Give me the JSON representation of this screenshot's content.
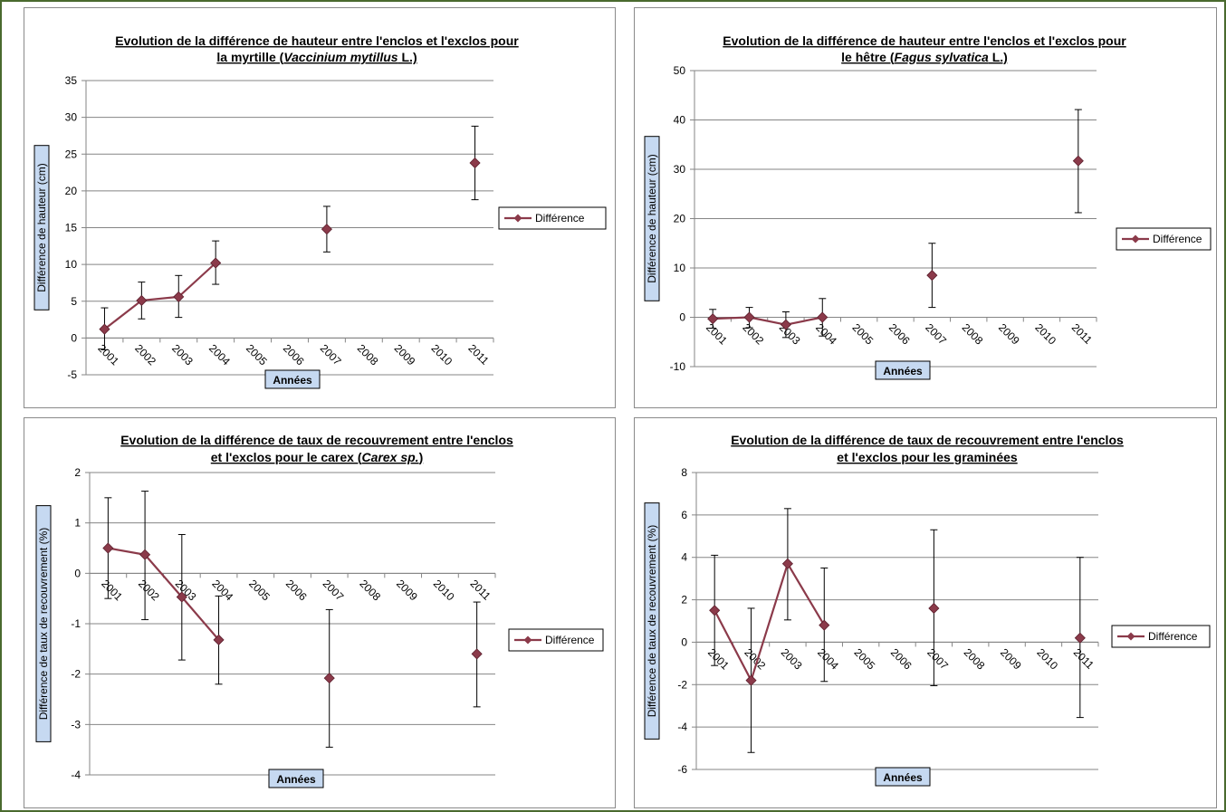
{
  "chart_data": [
    {
      "type": "line",
      "title_line1": "Evolution de la différence de hauteur entre l'enclos et l'exclos pour",
      "title_line2_pre": "la myrtille (",
      "title_line2_italic": "Vaccinium mytillus",
      "title_line2_post": " L.)",
      "xlabel": "Années",
      "ylabel": "Différence de hauteur (cm)",
      "categories": [
        "2001",
        "2002",
        "2003",
        "2004",
        "2005",
        "2006",
        "2007",
        "2008",
        "2009",
        "2010",
        "2011"
      ],
      "ylim": [
        -5,
        35
      ],
      "yticks": [
        -5,
        0,
        5,
        10,
        15,
        20,
        25,
        30,
        35
      ],
      "series": [
        {
          "name": "Différence",
          "values": [
            1.2,
            5.1,
            5.6,
            10.2,
            null,
            null,
            14.8,
            null,
            null,
            null,
            23.8
          ],
          "err_low": [
            -1.6,
            2.6,
            2.8,
            7.3,
            null,
            null,
            11.7,
            null,
            null,
            null,
            18.8
          ],
          "err_high": [
            4.1,
            7.6,
            8.5,
            13.2,
            null,
            null,
            17.9,
            null,
            null,
            null,
            28.8
          ]
        }
      ],
      "legend_position": "right",
      "color": "#8b3a4a",
      "grid": true
    },
    {
      "type": "line",
      "title_line1": "Evolution de la différence de hauteur entre l'enclos et l'exclos pour",
      "title_line2_pre": "le hêtre (",
      "title_line2_italic": "Fagus sylvatica",
      "title_line2_post": " L.)",
      "xlabel": "Années",
      "ylabel": "Différence de hauteur (cm)",
      "categories": [
        "2001",
        "2002",
        "2003",
        "2004",
        "2005",
        "2006",
        "2007",
        "2008",
        "2009",
        "2010",
        "2011"
      ],
      "ylim": [
        -10,
        50
      ],
      "yticks": [
        -10,
        0,
        10,
        20,
        30,
        40,
        50
      ],
      "series": [
        {
          "name": "Différence",
          "values": [
            -0.3,
            0,
            -1.5,
            0,
            null,
            null,
            8.5,
            null,
            null,
            null,
            31.7
          ],
          "err_low": [
            -2.2,
            -2.1,
            -4.1,
            -3.8,
            null,
            null,
            2,
            null,
            null,
            null,
            21.2
          ],
          "err_high": [
            1.6,
            2,
            1.1,
            3.8,
            null,
            null,
            15,
            null,
            null,
            null,
            42.1
          ]
        }
      ],
      "legend_position": "right",
      "color": "#8b3a4a",
      "grid": true
    },
    {
      "type": "line",
      "title_line1": "Evolution de la différence de taux de recouvrement entre l'enclos",
      "title_line2_pre": "et l'exclos pour le carex (",
      "title_line2_italic": "Carex sp.",
      "title_line2_post": ")",
      "xlabel": "Années",
      "ylabel": "Différence de taux de recouvrement (%)",
      "categories": [
        "2001",
        "2002",
        "2003",
        "2004",
        "2005",
        "2006",
        "2007",
        "2008",
        "2009",
        "2010",
        "2011"
      ],
      "ylim": [
        -4,
        2
      ],
      "yticks": [
        -4,
        -3,
        -2,
        -1,
        0,
        1,
        2
      ],
      "series": [
        {
          "name": "Différence",
          "values": [
            0.5,
            0.37,
            -0.47,
            -1.32,
            null,
            null,
            -2.08,
            null,
            null,
            null,
            -1.6
          ],
          "err_low": [
            -0.5,
            -0.92,
            -1.72,
            -2.2,
            null,
            null,
            -3.45,
            null,
            null,
            null,
            -2.65
          ],
          "err_high": [
            1.5,
            1.63,
            0.77,
            -0.45,
            null,
            null,
            -0.72,
            null,
            null,
            null,
            -0.57
          ]
        }
      ],
      "legend_position": "right",
      "color": "#8b3a4a",
      "grid": true
    },
    {
      "type": "line",
      "title_line1": "Evolution de la différence de taux de recouvrement entre l'enclos",
      "title_line2_pre": "et l'exclos pour les graminées",
      "title_line2_italic": "",
      "title_line2_post": "",
      "xlabel": "Années",
      "ylabel": "Différence de taux de recouvrement (%)",
      "categories": [
        "2001",
        "2002",
        "2003",
        "2004",
        "2005",
        "2006",
        "2007",
        "2008",
        "2009",
        "2010",
        "2011"
      ],
      "ylim": [
        -6,
        8
      ],
      "yticks": [
        -6,
        -4,
        -2,
        0,
        2,
        4,
        6,
        8
      ],
      "series": [
        {
          "name": "Différence",
          "values": [
            1.5,
            -1.8,
            3.7,
            0.8,
            null,
            null,
            1.6,
            null,
            null,
            null,
            0.2
          ],
          "err_low": [
            -1.1,
            -5.2,
            1.05,
            -1.85,
            null,
            null,
            -2.05,
            null,
            null,
            null,
            -3.55
          ],
          "err_high": [
            4.1,
            1.6,
            6.3,
            3.5,
            null,
            null,
            5.3,
            null,
            null,
            null,
            4
          ]
        }
      ],
      "legend_position": "right",
      "color": "#8b3a4a",
      "grid": true
    }
  ]
}
